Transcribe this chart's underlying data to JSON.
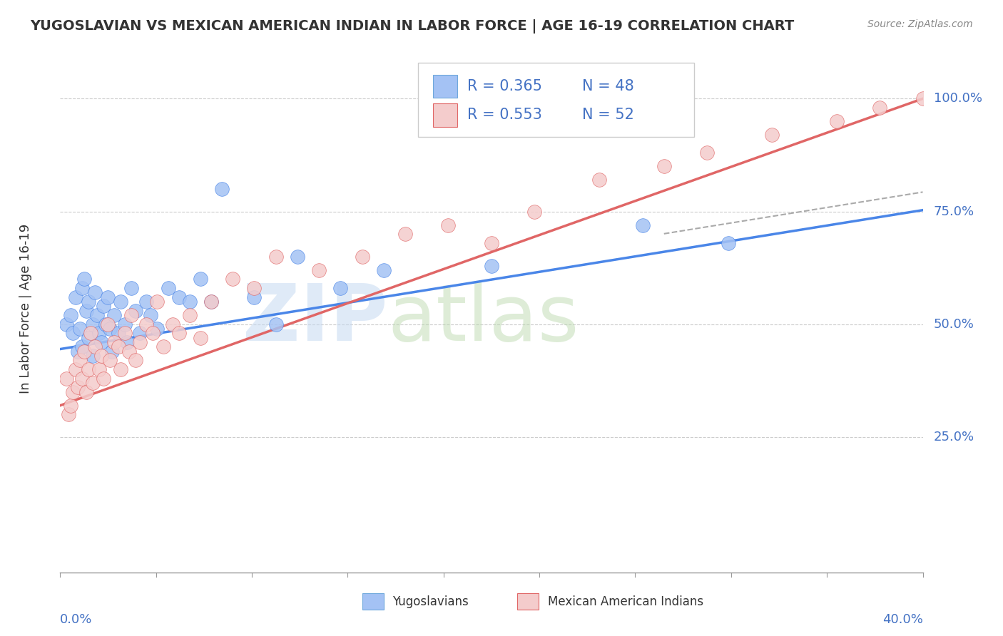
{
  "title": "YUGOSLAVIAN VS MEXICAN AMERICAN INDIAN IN LABOR FORCE | AGE 16-19 CORRELATION CHART",
  "source": "Source: ZipAtlas.com",
  "ylabel": "In Labor Force | Age 16-19",
  "y_tick_labels": [
    "25.0%",
    "50.0%",
    "75.0%",
    "100.0%"
  ],
  "y_tick_values": [
    0.25,
    0.5,
    0.75,
    1.0
  ],
  "xlim": [
    0.0,
    0.4
  ],
  "ylim": [
    -0.05,
    1.12
  ],
  "legend_label1": "Yugoslavians",
  "legend_label2": "Mexican American Indians",
  "blue_color": "#a4c2f4",
  "pink_color": "#f4cccc",
  "blue_line_color": "#4a86e8",
  "pink_line_color": "#e06666",
  "gray_dash_color": "#aaaaaa",
  "blue_intercept": 0.445,
  "blue_slope": 0.77,
  "pink_intercept": 0.32,
  "pink_slope": 1.7,
  "yugoslavian_x": [
    0.003,
    0.005,
    0.006,
    0.007,
    0.008,
    0.009,
    0.01,
    0.01,
    0.011,
    0.012,
    0.013,
    0.013,
    0.015,
    0.015,
    0.016,
    0.017,
    0.018,
    0.019,
    0.02,
    0.021,
    0.022,
    0.023,
    0.024,
    0.025,
    0.027,
    0.028,
    0.03,
    0.031,
    0.033,
    0.035,
    0.037,
    0.04,
    0.042,
    0.045,
    0.05,
    0.055,
    0.06,
    0.065,
    0.07,
    0.075,
    0.09,
    0.1,
    0.11,
    0.13,
    0.15,
    0.2,
    0.27,
    0.31
  ],
  "yugoslavian_y": [
    0.5,
    0.52,
    0.48,
    0.56,
    0.44,
    0.49,
    0.45,
    0.58,
    0.6,
    0.53,
    0.47,
    0.55,
    0.5,
    0.43,
    0.57,
    0.52,
    0.48,
    0.46,
    0.54,
    0.5,
    0.56,
    0.49,
    0.44,
    0.52,
    0.48,
    0.55,
    0.5,
    0.46,
    0.58,
    0.53,
    0.48,
    0.55,
    0.52,
    0.49,
    0.58,
    0.56,
    0.55,
    0.6,
    0.55,
    0.8,
    0.56,
    0.5,
    0.65,
    0.58,
    0.62,
    0.63,
    0.72,
    0.68
  ],
  "mexican_x": [
    0.003,
    0.004,
    0.005,
    0.006,
    0.007,
    0.008,
    0.009,
    0.01,
    0.011,
    0.012,
    0.013,
    0.014,
    0.015,
    0.016,
    0.018,
    0.019,
    0.02,
    0.022,
    0.023,
    0.025,
    0.027,
    0.028,
    0.03,
    0.032,
    0.033,
    0.035,
    0.037,
    0.04,
    0.043,
    0.045,
    0.048,
    0.052,
    0.055,
    0.06,
    0.065,
    0.07,
    0.08,
    0.09,
    0.1,
    0.12,
    0.14,
    0.16,
    0.18,
    0.2,
    0.22,
    0.25,
    0.28,
    0.3,
    0.33,
    0.36,
    0.38,
    0.4
  ],
  "mexican_y": [
    0.38,
    0.3,
    0.32,
    0.35,
    0.4,
    0.36,
    0.42,
    0.38,
    0.44,
    0.35,
    0.4,
    0.48,
    0.37,
    0.45,
    0.4,
    0.43,
    0.38,
    0.5,
    0.42,
    0.46,
    0.45,
    0.4,
    0.48,
    0.44,
    0.52,
    0.42,
    0.46,
    0.5,
    0.48,
    0.55,
    0.45,
    0.5,
    0.48,
    0.52,
    0.47,
    0.55,
    0.6,
    0.58,
    0.65,
    0.62,
    0.65,
    0.7,
    0.72,
    0.68,
    0.75,
    0.82,
    0.85,
    0.88,
    0.92,
    0.95,
    0.98,
    1.0
  ]
}
